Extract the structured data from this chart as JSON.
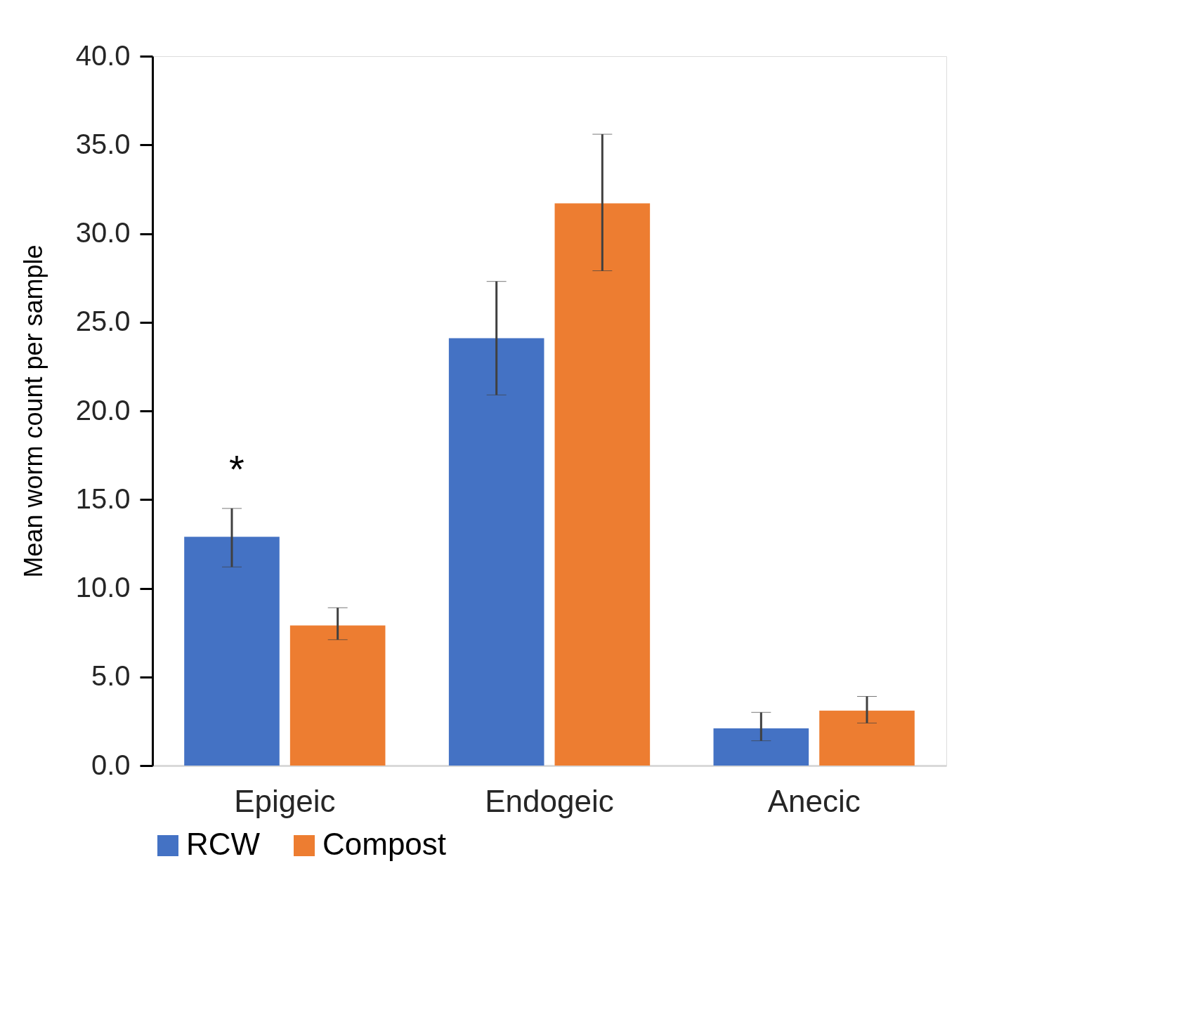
{
  "chart_data": {
    "type": "bar",
    "ylabel": "Mean worm count per sample",
    "categories": [
      "Epigeic",
      "Endogeic",
      "Anecic"
    ],
    "series": [
      {
        "name": "RCW",
        "color": "#4472c4",
        "values": [
          12.9,
          24.1,
          2.1
        ],
        "errors": [
          [
            11.2,
            14.5
          ],
          [
            20.9,
            27.3
          ],
          [
            1.4,
            3.0
          ]
        ]
      },
      {
        "name": "Compost",
        "color": "#ed7d31",
        "values": [
          7.9,
          31.7,
          3.1
        ],
        "errors": [
          [
            7.1,
            8.9
          ],
          [
            27.9,
            35.6
          ],
          [
            2.4,
            3.9
          ]
        ]
      }
    ],
    "ylim": [
      0,
      40
    ],
    "yticks": [
      {
        "value": 0,
        "label": "0.0"
      },
      {
        "value": 5,
        "label": "5.0"
      },
      {
        "value": 10,
        "label": "10.0"
      },
      {
        "value": 15,
        "label": "15.0"
      },
      {
        "value": 20,
        "label": "20.0"
      },
      {
        "value": 25,
        "label": "25.0"
      },
      {
        "value": 30,
        "label": "30.0"
      },
      {
        "value": 35,
        "label": "35.0"
      },
      {
        "value": 40,
        "label": "40.0"
      }
    ],
    "annotations": [
      "*"
    ],
    "grid": false,
    "legend": "bottom"
  }
}
